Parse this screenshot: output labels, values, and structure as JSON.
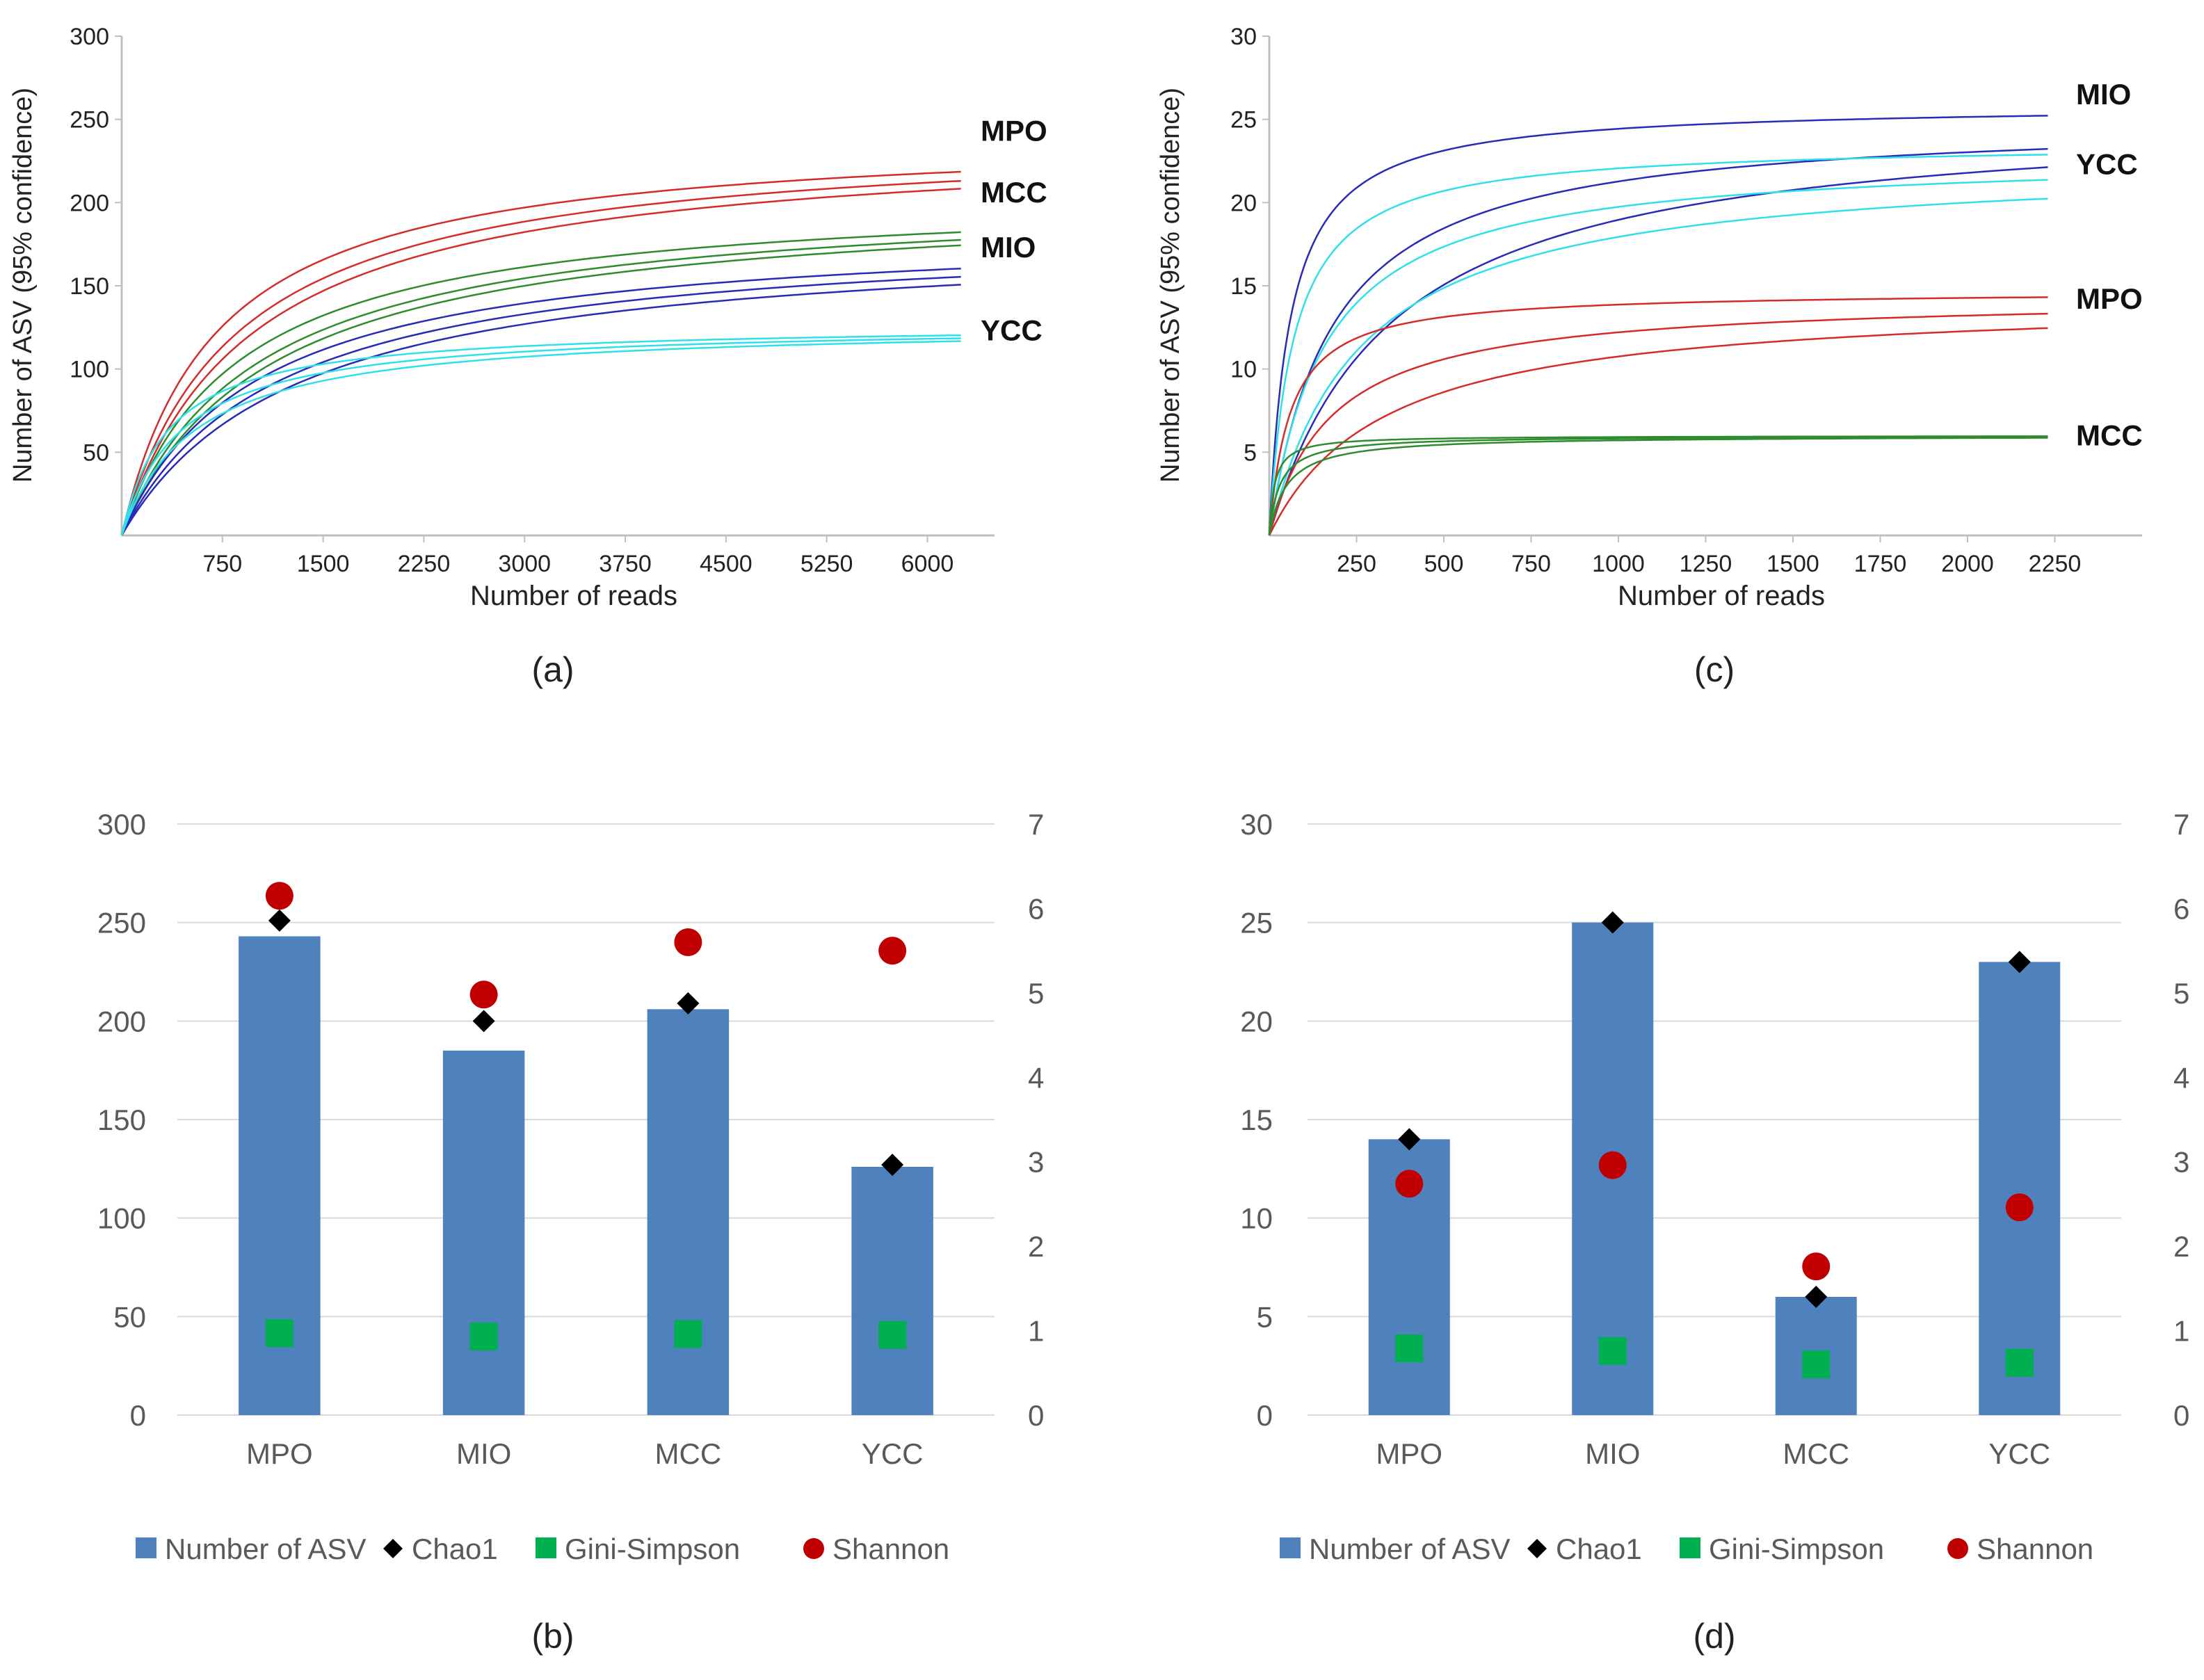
{
  "colors": {
    "MPO": "#d62b2b",
    "MCC": "#2e8b2e",
    "MIO": "#2a2ab8",
    "YCC": "#30e0e8",
    "bar": "#4f81bd",
    "chao1": "#000000",
    "gini": "#00b050",
    "shannon": "#c00000",
    "axis": "#bfbfbf",
    "grid": "#d9d9d9"
  },
  "chart_data": [
    {
      "id": "a",
      "type": "line",
      "caption": "(a)",
      "xlabel": "Number of reads",
      "ylabel": "Number of ASV (95% confidence)",
      "xlim": [
        0,
        6500
      ],
      "ylim": [
        0,
        300
      ],
      "xticks": [
        750,
        1500,
        2250,
        3000,
        3750,
        4500,
        5250,
        6000
      ],
      "yticks": [
        50,
        100,
        150,
        200,
        250,
        300
      ],
      "xmax_data": 6250,
      "groups": [
        {
          "name": "MPO",
          "label": "MPO",
          "label_y": 243,
          "series": [
            {
              "plateau": 243,
              "half": 700
            },
            {
              "plateau": 242,
              "half": 850
            },
            {
              "plateau": 240,
              "half": 950
            }
          ]
        },
        {
          "name": "MCC",
          "label": "MCC",
          "label_y": 206,
          "series": [
            {
              "plateau": 207,
              "half": 850
            },
            {
              "plateau": 206,
              "half": 1000
            },
            {
              "plateau": 205,
              "half": 1100
            }
          ]
        },
        {
          "name": "MIO",
          "label": "MIO",
          "label_y": 173,
          "series": [
            {
              "plateau": 186,
              "half": 1000
            },
            {
              "plateau": 184,
              "half": 1150
            },
            {
              "plateau": 182,
              "half": 1300
            }
          ]
        },
        {
          "name": "YCC",
          "label": "YCC",
          "label_y": 123,
          "series": [
            {
              "plateau": 127,
              "half": 350
            },
            {
              "plateau": 127,
              "half": 450
            },
            {
              "plateau": 127,
              "half": 550
            }
          ]
        }
      ]
    },
    {
      "id": "c",
      "type": "line",
      "caption": "(c)",
      "xlabel": "Number of reads",
      "ylabel": "Number of ASV (95% confidence)",
      "xlim": [
        0,
        2500
      ],
      "ylim": [
        0,
        30
      ],
      "xticks": [
        250,
        500,
        750,
        1000,
        1250,
        1500,
        1750,
        2000,
        2250
      ],
      "yticks": [
        5,
        10,
        15,
        20,
        25,
        30
      ],
      "xmax_data": 2230,
      "groups": [
        {
          "name": "MIO",
          "label": "MIO",
          "label_y": 26.5,
          "series": [
            {
              "plateau": 25.9,
              "half": 60
            },
            {
              "plateau": 25.1,
              "half": 180
            },
            {
              "plateau": 25.6,
              "half": 350
            }
          ]
        },
        {
          "name": "YCC",
          "label": "YCC",
          "label_y": 22.3,
          "series": [
            {
              "plateau": 23.6,
              "half": 70
            },
            {
              "plateau": 22.9,
              "half": 160
            },
            {
              "plateau": 22.6,
              "half": 260
            }
          ]
        },
        {
          "name": "MPO",
          "label": "MPO",
          "label_y": 14.2,
          "series": [
            {
              "plateau": 14.7,
              "half": 60
            },
            {
              "plateau": 14.4,
              "half": 180
            },
            {
              "plateau": 14.3,
              "half": 330
            }
          ]
        },
        {
          "name": "MCC",
          "label": "MCC",
          "label_y": 6.0,
          "series": [
            {
              "plateau": 6.0,
              "half": 15
            },
            {
              "plateau": 6.0,
              "half": 30
            },
            {
              "plateau": 6.0,
              "half": 50
            }
          ]
        }
      ]
    },
    {
      "id": "b",
      "type": "bar",
      "caption": "(b)",
      "categories": [
        "MPO",
        "MIO",
        "MCC",
        "YCC"
      ],
      "ylim": [
        0,
        300
      ],
      "y2lim": [
        0,
        7
      ],
      "yticks": [
        0,
        50,
        100,
        150,
        200,
        250,
        300
      ],
      "y2ticks": [
        0,
        1,
        2,
        3,
        4,
        5,
        6,
        7
      ],
      "series": [
        {
          "name": "Number of ASV",
          "axis": "left",
          "kind": "bar",
          "values": [
            243,
            185,
            206,
            126
          ]
        },
        {
          "name": "Chao1",
          "axis": "left",
          "kind": "diamond",
          "values": [
            251,
            200,
            209,
            127
          ]
        },
        {
          "name": "Gini-Simpson",
          "axis": "right",
          "kind": "square",
          "values": [
            0.97,
            0.93,
            0.96,
            0.95
          ]
        },
        {
          "name": "Shannon",
          "axis": "right",
          "kind": "circle",
          "values": [
            6.15,
            4.98,
            5.6,
            5.5
          ]
        }
      ],
      "legend": [
        "Number of ASV",
        "Chao1",
        "Gini-Simpson",
        "Shannon"
      ]
    },
    {
      "id": "d",
      "type": "bar",
      "caption": "(d)",
      "categories": [
        "MPO",
        "MIO",
        "MCC",
        "YCC"
      ],
      "ylim": [
        0,
        30
      ],
      "y2lim": [
        0,
        7
      ],
      "yticks": [
        0,
        5,
        10,
        15,
        20,
        25,
        30
      ],
      "y2ticks": [
        0,
        1,
        2,
        3,
        4,
        5,
        6,
        7
      ],
      "series": [
        {
          "name": "Number of ASV",
          "axis": "left",
          "kind": "bar",
          "values": [
            14,
            25,
            6,
            23
          ]
        },
        {
          "name": "Chao1",
          "axis": "left",
          "kind": "diamond",
          "values": [
            14,
            25,
            6,
            23
          ]
        },
        {
          "name": "Gini-Simpson",
          "axis": "right",
          "kind": "square",
          "values": [
            0.79,
            0.76,
            0.6,
            0.62
          ]
        },
        {
          "name": "Shannon",
          "axis": "right",
          "kind": "circle",
          "values": [
            2.74,
            2.96,
            1.76,
            2.46
          ]
        }
      ],
      "legend": [
        "Number of ASV",
        "Chao1",
        "Gini-Simpson",
        "Shannon"
      ]
    }
  ]
}
